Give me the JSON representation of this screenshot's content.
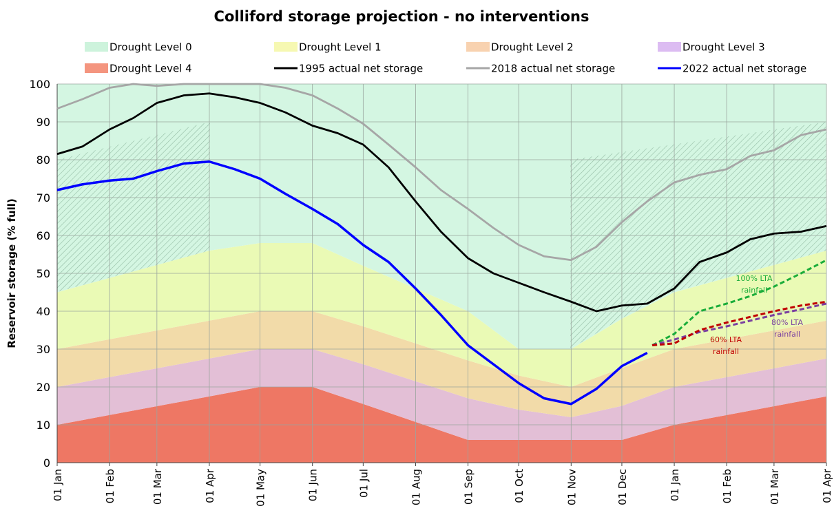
{
  "chart_data": {
    "type": "area_line",
    "title": "Colliford storage projection - no interventions",
    "y_label": "Reservoir storage (% full)",
    "xlim": [
      0,
      455
    ],
    "xticks": [
      {
        "value": 0,
        "label": "01 Jan"
      },
      {
        "value": 31,
        "label": "01 Feb"
      },
      {
        "value": 59,
        "label": "01 Mar"
      },
      {
        "value": 90,
        "label": "01 Apr"
      },
      {
        "value": 120,
        "label": "01 May"
      },
      {
        "value": 151,
        "label": "01 Jun"
      },
      {
        "value": 181,
        "label": "01 Jul"
      },
      {
        "value": 212,
        "label": "01 Aug"
      },
      {
        "value": 243,
        "label": "01 Sep"
      },
      {
        "value": 273,
        "label": "01 Oct"
      },
      {
        "value": 304,
        "label": "01 Nov"
      },
      {
        "value": 334,
        "label": "01 Dec"
      },
      {
        "value": 365,
        "label": "01 Jan"
      },
      {
        "value": 396,
        "label": "01 Feb"
      },
      {
        "value": 424,
        "label": "01 Mar"
      },
      {
        "value": 455,
        "label": "01 Apr"
      }
    ],
    "ylim": [
      0,
      100
    ],
    "yticks": [
      0,
      10,
      20,
      30,
      40,
      50,
      60,
      70,
      80,
      90,
      100
    ],
    "grid": true,
    "area_x": [
      0,
      90,
      120,
      151,
      181,
      243,
      273,
      304,
      334,
      365,
      455
    ],
    "areas": [
      {
        "name": "Drought Level 4",
        "color": "#ee7764",
        "legend_color": "#f4957f",
        "values": [
          10,
          17.5,
          20,
          20,
          15.5,
          6,
          6,
          6,
          6,
          10,
          17.5
        ]
      },
      {
        "name": "Drought Level 3",
        "color": "#e3bfd6",
        "legend_color": "#dcbcf2",
        "values": [
          10,
          10,
          10,
          10,
          10.5,
          11,
          8,
          6,
          9,
          10,
          10
        ]
      },
      {
        "name": "Drought Level 2",
        "color": "#f2dba9",
        "legend_color": "#f8d2b0",
        "values": [
          10,
          10,
          10,
          10,
          10,
          10,
          9,
          8,
          10,
          10,
          10
        ]
      },
      {
        "name": "Drought Level 1",
        "color": "#eafab5",
        "legend_color": "#f6f8b2",
        "values": [
          15,
          18.5,
          18,
          18,
          16,
          13,
          7,
          10,
          13,
          15,
          18.5
        ]
      },
      {
        "name": "Drought Level 0",
        "color": "#d4f6e2",
        "legend_color": "#cdf3dc",
        "values": [
          55,
          44,
          42,
          42,
          48,
          60,
          70,
          70,
          62,
          55,
          44
        ]
      }
    ],
    "legend_order": [
      "areas.4",
      "areas.3",
      "areas.2",
      "areas.1",
      "areas.0",
      "series.0",
      "series.1",
      "series.2"
    ],
    "x": [
      0,
      15,
      31,
      45,
      59,
      75,
      90,
      105,
      120,
      135,
      151,
      166,
      181,
      196,
      212,
      227,
      243,
      258,
      273,
      288,
      304,
      319,
      334,
      349,
      365,
      380,
      396,
      410,
      424,
      440,
      455
    ],
    "series": [
      {
        "name": "1995 actual net storage",
        "color": "#000000",
        "values": [
          81.5,
          83.5,
          88,
          91,
          95,
          97,
          97.5,
          96.5,
          95,
          92.5,
          89,
          87,
          84,
          78,
          69,
          61,
          54,
          50,
          47.5,
          45,
          42.5,
          40,
          41.5,
          42,
          46,
          53,
          55.5,
          59,
          60.5,
          61,
          62.5
        ]
      },
      {
        "name": "2018 actual net storage",
        "color": "#a6a6a6",
        "values": [
          93.5,
          96,
          99,
          100,
          99.5,
          100,
          100,
          100,
          100,
          99,
          97,
          93.5,
          89.5,
          84,
          78,
          72,
          67,
          62,
          57.5,
          54.5,
          53.5,
          57,
          63.5,
          69,
          74,
          76,
          77.5,
          81,
          82.5,
          86.5,
          88
        ]
      },
      {
        "name": "2022 actual net storage",
        "color": "#0000ff",
        "values": [
          72,
          73.5,
          74.5,
          75,
          77,
          79,
          79.5,
          77.5,
          75,
          71,
          67,
          63,
          57.5,
          53,
          46,
          39,
          31,
          26,
          21,
          17,
          15.5,
          19.5,
          25.5,
          29,
          null,
          null,
          null,
          null,
          null,
          null,
          null
        ]
      }
    ],
    "projection_x": [
      352,
      365,
      380,
      396,
      410,
      424,
      440,
      455
    ],
    "projections": [
      {
        "label": [
          "100% LTA",
          "rainfall"
        ],
        "color": "#1aad3a",
        "style": "dashed",
        "values": [
          31,
          34,
          40,
          42,
          44,
          46.5,
          50,
          53.5
        ]
      },
      {
        "label": [
          "80% LTA",
          "rainfall"
        ],
        "color": "#7a3fa0",
        "style": "dashed",
        "values": [
          31,
          32.5,
          34.5,
          36,
          37.5,
          39,
          40.5,
          42
        ]
      },
      {
        "label": [
          "60% LTA",
          "rainfall"
        ],
        "color": "#c00000",
        "style": "dashed",
        "values": [
          31,
          31.5,
          35,
          37,
          38.5,
          40,
          41.5,
          42.5
        ]
      }
    ]
  }
}
